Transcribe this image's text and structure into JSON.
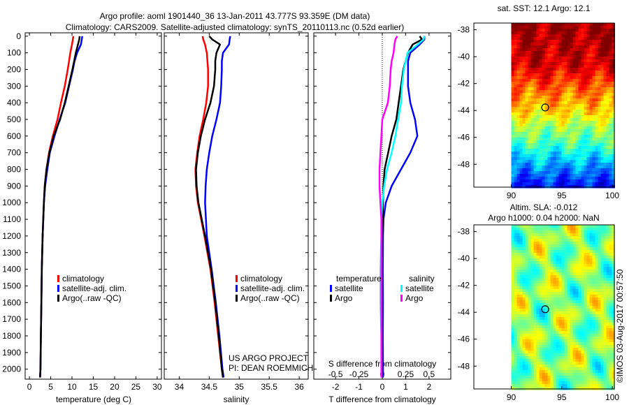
{
  "header": {
    "title_line1": "Argo profile: aoml 1901440_36 13-Jan-2011 43.777S 93.359E (DM data)",
    "title_line2": "Climatology: CARS2009. Satellite-adjusted climatology: synTS_20110113.nc (0.52d earlier)"
  },
  "credit": "©IMOS 03-Aug-2017 00:57:50",
  "project": {
    "line1": "US ARGO PROJECT",
    "line2": "PI: DEAN ROEMMICH"
  },
  "colors": {
    "climatology": "#ff0000",
    "satellite": "#0000ff",
    "argo": "#000000",
    "sal_satellite": "#00ffff",
    "sal_argo": "#ff00ff"
  },
  "chart_data": [
    {
      "type": "line",
      "id": "temperature",
      "xlabel": "temperature (deg C)",
      "ylabel": "",
      "xlim": [
        -1,
        31
      ],
      "ylim": [
        2060,
        -20
      ],
      "xticks": [
        0,
        5,
        10,
        15,
        20,
        25,
        30
      ],
      "yticks": [
        0,
        100,
        200,
        300,
        400,
        500,
        600,
        700,
        800,
        900,
        1000,
        1100,
        1200,
        1300,
        1400,
        1500,
        1600,
        1700,
        1800,
        1900,
        2000
      ],
      "legend": [
        "climatology",
        "satellite-adj. clim.",
        "Argo(..raw -QC)"
      ],
      "depth": [
        0,
        20,
        50,
        100,
        150,
        200,
        300,
        400,
        500,
        600,
        700,
        800,
        900,
        1000,
        1200,
        1400,
        1600,
        1800,
        2000,
        2050
      ],
      "series": [
        {
          "name": "climatology",
          "color": "#ff0000",
          "values": [
            10.3,
            10.2,
            10.0,
            9.6,
            9.3,
            9.0,
            8.3,
            7.4,
            6.6,
            5.5,
            4.6,
            4.0,
            3.6,
            3.4,
            3.1,
            2.9,
            2.8,
            2.7,
            2.6,
            2.5
          ]
        },
        {
          "name": "satellite-adj. clim.",
          "color": "#0000ff",
          "values": [
            12.4,
            12.3,
            12.1,
            11.2,
            10.6,
            10.2,
            9.3,
            8.4,
            7.1,
            5.9,
            4.8,
            4.2,
            3.7,
            3.4,
            3.1,
            2.9,
            2.8,
            2.7,
            2.6,
            2.5
          ]
        },
        {
          "name": "Argo(..raw -QC)",
          "color": "#000000",
          "values": [
            11.8,
            11.7,
            11.4,
            10.9,
            10.5,
            10.1,
            9.2,
            8.3,
            7.2,
            5.7,
            4.7,
            4.0,
            3.6,
            3.4,
            3.1,
            2.9,
            2.8,
            2.7,
            2.6,
            2.5
          ]
        }
      ]
    },
    {
      "type": "line",
      "id": "salinity",
      "xlabel": "salinity",
      "xlim": [
        33.75,
        36.15
      ],
      "ylim": [
        2060,
        -20
      ],
      "xticks": [
        34,
        34.5,
        35,
        35.5,
        36
      ],
      "legend": [
        "climatology",
        "satellite-adj. clim.",
        "Argo(..raw -QC)"
      ],
      "depth": [
        0,
        20,
        50,
        100,
        150,
        200,
        300,
        400,
        500,
        600,
        700,
        800,
        900,
        1000,
        1200,
        1400,
        1600,
        1800,
        2000,
        2050
      ],
      "series": [
        {
          "name": "climatology",
          "color": "#ff0000",
          "values": [
            34.39,
            34.4,
            34.43,
            34.46,
            34.47,
            34.48,
            34.48,
            34.45,
            34.4,
            34.34,
            34.3,
            34.27,
            34.28,
            34.31,
            34.42,
            34.52,
            34.59,
            34.65,
            34.71,
            34.73
          ]
        },
        {
          "name": "satellite-adj. clim.",
          "color": "#0000ff",
          "values": [
            34.85,
            34.84,
            34.83,
            34.73,
            34.71,
            34.71,
            34.7,
            34.68,
            34.62,
            34.55,
            34.5,
            34.46,
            34.44,
            34.43,
            34.46,
            34.54,
            34.61,
            34.67,
            34.72,
            34.74
          ]
        },
        {
          "name": "Argo(..raw -QC)",
          "color": "#000000",
          "values": [
            34.5,
            34.55,
            34.68,
            34.62,
            34.6,
            34.6,
            34.58,
            34.52,
            34.43,
            34.36,
            34.31,
            34.28,
            34.29,
            34.32,
            34.43,
            34.53,
            34.6,
            34.66,
            34.71,
            34.73
          ]
        }
      ]
    },
    {
      "type": "line",
      "id": "differences",
      "xlabel": "T difference from climatology",
      "xlabel2": "S difference from climatology",
      "xlim": [
        -2.93,
        2.93
      ],
      "xticks": [
        -2,
        -1,
        0,
        1,
        2
      ],
      "xticks_s": [
        -0.5,
        -0.25,
        0,
        0.25,
        0.5
      ],
      "ylim": [
        2060,
        -20
      ],
      "legend_groups": [
        {
          "title": "temperature",
          "items": [
            "satellite",
            "Argo"
          ]
        },
        {
          "title": "salinity",
          "items": [
            "satellite",
            "Argo"
          ]
        }
      ],
      "depth": [
        0,
        20,
        50,
        100,
        150,
        200,
        300,
        400,
        500,
        600,
        700,
        800,
        900,
        1000,
        1100,
        1200,
        1400,
        1600,
        1800,
        2000,
        2050
      ],
      "series": [
        {
          "name": "T satellite",
          "color": "#0000ff",
          "unit": "T",
          "values": [
            1.8,
            1.8,
            1.6,
            1.2,
            1.1,
            1.1,
            1.1,
            1.2,
            1.4,
            1.5,
            1.2,
            0.8,
            0.4,
            0.15,
            0.05,
            0.03,
            0.02,
            0.03,
            0.02,
            0.03,
            0.03
          ]
        },
        {
          "name": "T Argo",
          "color": "#000000",
          "unit": "T",
          "values": [
            1.6,
            1.7,
            1.3,
            1.1,
            1.0,
            0.9,
            0.8,
            0.7,
            0.6,
            0.4,
            0.25,
            0.1,
            0.05,
            0.03,
            0.02,
            0.01,
            0.0,
            0.0,
            0.0,
            0.0,
            0.0
          ]
        },
        {
          "name": "S satellite",
          "color": "#00ffff",
          "unit": "S",
          "values": [
            0.45,
            0.44,
            0.38,
            0.27,
            0.25,
            0.23,
            0.21,
            0.2,
            0.17,
            0.14,
            0.1,
            0.05,
            0.02,
            0.0,
            -0.01,
            -0.01,
            -0.02,
            -0.02,
            -0.01,
            -0.01,
            -0.01
          ]
        },
        {
          "name": "S Argo",
          "color": "#ff00ff",
          "unit": "S",
          "values": [
            0.16,
            0.14,
            0.13,
            0.12,
            0.1,
            0.09,
            0.08,
            0.06,
            0.0,
            -0.01,
            -0.02,
            -0.03,
            -0.03,
            -0.02,
            -0.01,
            -0.01,
            -0.01,
            -0.01,
            -0.01,
            -0.01,
            -0.01
          ]
        }
      ]
    },
    {
      "type": "heatmap",
      "id": "sst-map",
      "title": "sat. SST: 12.1 Argo: 12.1",
      "xlim": [
        86.3,
        100.2
      ],
      "ylim": [
        -49.7,
        -37.5
      ],
      "xticks": [
        90,
        95,
        100
      ],
      "yticks": [
        -38,
        -40,
        -42,
        -44,
        -46,
        -48
      ],
      "marker": {
        "lon": 93.359,
        "lat": -43.777
      }
    },
    {
      "type": "heatmap",
      "id": "sla-map",
      "title_line1": "Altim. SLA: -0.012",
      "title_line2": "Argo h1000: 0.04 h2000: NaN",
      "xlim": [
        86.3,
        100.2
      ],
      "ylim": [
        -49.7,
        -37.5
      ],
      "xticks": [
        90,
        95,
        100
      ],
      "yticks": [
        -38,
        -40,
        -42,
        -44,
        -46,
        -48
      ],
      "marker": {
        "lon": 93.359,
        "lat": -43.777
      }
    }
  ]
}
